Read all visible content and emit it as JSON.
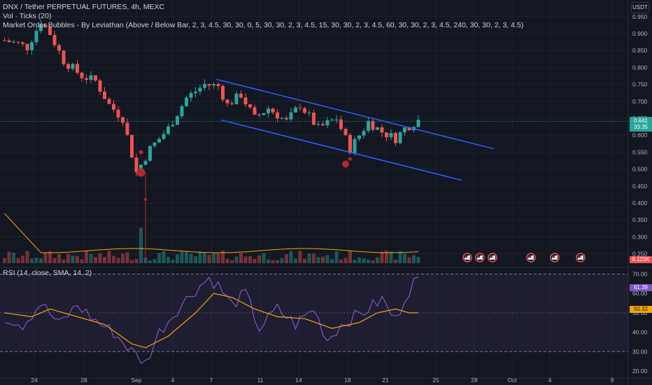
{
  "header": {
    "title": "DNX / Tether PERPETUAL FUTURES, 4h, MEXC",
    "vol_label": "Vol · Ticks (20)",
    "indicator_label": "Market Order Bubbles - By Leviathan (Above / Below Bar, 2, 3, 4.5, 30, 30, 0, 5, 30, 30, 2, 3, 4.5, 15, 30, 30, 2, 3, 4.5, 60, 30, 30, 2, 3, 4.5, 240, 30, 30, 2, 3, 4.5)",
    "rsi_label": "RSI (14, close, SMA, 14, 2)",
    "currency": "USDT"
  },
  "colors": {
    "background": "#131722",
    "up": "#26a69a",
    "down": "#ef5350",
    "trendline": "#2962ff",
    "rsi": "#7e57c2",
    "rsi_ma": "#f7a600",
    "volume_ma": "#f7a600",
    "bubble": "#b22833"
  },
  "chart_data": [
    {
      "type": "candlestick",
      "title": "DNX / Tether PERPETUAL FUTURES, 4h, MEXC",
      "x_ticks": [
        "24",
        "28",
        "Sep",
        "4",
        "7",
        "11",
        "14",
        "18",
        "21",
        "25",
        "28",
        "Oct",
        "4",
        "9"
      ],
      "y_ticks": [
        "0.950",
        "0.900",
        "0.850",
        "0.800",
        "0.750",
        "0.700",
        "0.650",
        "0.600",
        "0.550",
        "0.500",
        "0.450",
        "0.400",
        "0.350",
        "0.300",
        "0.250"
      ],
      "ylim": [
        0.225,
        0.975
      ],
      "last_price": "0.641",
      "countdown": "33:35",
      "volume_last": "9.123K",
      "price_path": [
        [
          0,
          0.88
        ],
        [
          3,
          0.87
        ],
        [
          5,
          0.86
        ],
        [
          8,
          0.935
        ],
        [
          10,
          0.9
        ],
        [
          13,
          0.82
        ],
        [
          17,
          0.775
        ],
        [
          20,
          0.76
        ],
        [
          23,
          0.69
        ],
        [
          26,
          0.65
        ],
        [
          29,
          0.49
        ],
        [
          32,
          0.56
        ],
        [
          36,
          0.62
        ],
        [
          40,
          0.71
        ],
        [
          44,
          0.75
        ],
        [
          47,
          0.745
        ],
        [
          49,
          0.69
        ],
        [
          52,
          0.72
        ],
        [
          55,
          0.65
        ],
        [
          58,
          0.68
        ],
        [
          62,
          0.64
        ],
        [
          65,
          0.69
        ],
        [
          69,
          0.62
        ],
        [
          73,
          0.65
        ],
        [
          76,
          0.56
        ],
        [
          80,
          0.64
        ],
        [
          83,
          0.61
        ],
        [
          86,
          0.59
        ],
        [
          88,
          0.62
        ],
        [
          91,
          0.645
        ]
      ],
      "trendlines": [
        {
          "points": [
            [
              47,
              0.765
            ],
            [
              108,
              0.56
            ]
          ]
        },
        {
          "points": [
            [
              48,
              0.645
            ],
            [
              101,
              0.467
            ]
          ]
        }
      ],
      "bubbles": [
        {
          "x": 30,
          "price": 0.49,
          "size": 6
        },
        {
          "x": 30,
          "price": 0.55,
          "size": 3
        },
        {
          "x": 31,
          "price": 0.41,
          "size": 2
        },
        {
          "x": 75,
          "price": 0.515,
          "size": 5
        },
        {
          "x": 76,
          "price": 0.53,
          "size": 2.5
        }
      ]
    },
    {
      "type": "line",
      "title": "RSI (14, close, SMA, 14, 2)",
      "y_ticks": [
        "70.00",
        "60.00",
        "50.00",
        "40.00",
        "30.00",
        "20.00"
      ],
      "ylim": [
        19,
        73
      ],
      "band": [
        30,
        70
      ],
      "rsi_last": "61.39",
      "ma_last": "50.32",
      "rsi_path": [
        [
          0,
          48
        ],
        [
          4,
          44
        ],
        [
          8,
          55
        ],
        [
          12,
          44
        ],
        [
          16,
          54
        ],
        [
          20,
          46
        ],
        [
          24,
          40
        ],
        [
          28,
          30
        ],
        [
          31,
          24
        ],
        [
          34,
          40
        ],
        [
          38,
          52
        ],
        [
          42,
          62
        ],
        [
          45,
          68
        ],
        [
          47,
          64
        ],
        [
          50,
          54
        ],
        [
          53,
          60
        ],
        [
          56,
          42
        ],
        [
          60,
          52
        ],
        [
          64,
          44
        ],
        [
          68,
          52
        ],
        [
          71,
          36
        ],
        [
          74,
          44
        ],
        [
          77,
          48
        ],
        [
          80,
          52
        ],
        [
          83,
          57
        ],
        [
          86,
          46
        ],
        [
          88,
          58
        ],
        [
          90,
          66
        ]
      ],
      "ma_path": [
        [
          0,
          50
        ],
        [
          6,
          48
        ],
        [
          10,
          52
        ],
        [
          16,
          48
        ],
        [
          22,
          44
        ],
        [
          28,
          34
        ],
        [
          31,
          32
        ],
        [
          36,
          38
        ],
        [
          42,
          50
        ],
        [
          46,
          60
        ],
        [
          50,
          58
        ],
        [
          55,
          52
        ],
        [
          60,
          48
        ],
        [
          66,
          47
        ],
        [
          72,
          42
        ],
        [
          78,
          45
        ],
        [
          82,
          50
        ],
        [
          86,
          52
        ],
        [
          89,
          50
        ],
        [
          91,
          50
        ]
      ]
    }
  ]
}
